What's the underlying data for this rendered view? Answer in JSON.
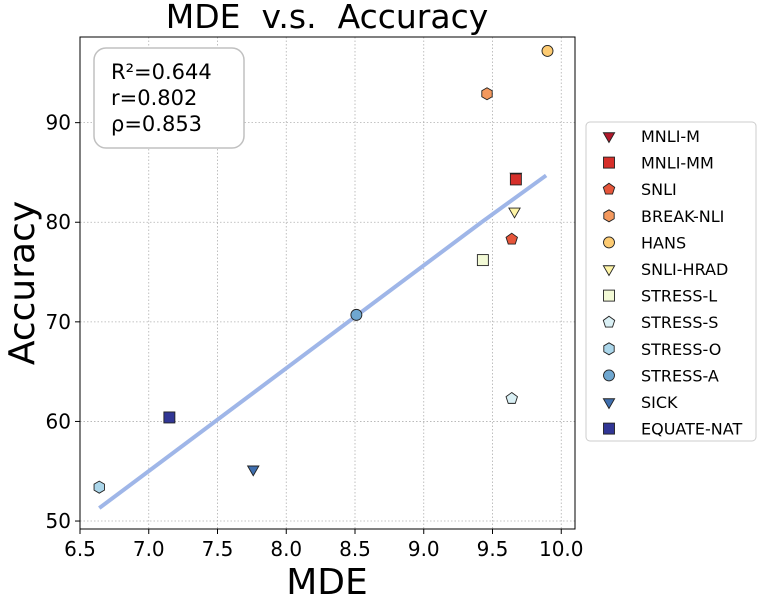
{
  "chart_data": {
    "type": "scatter",
    "title": "MDE  v.s.  Accuracy",
    "xlabel": "MDE",
    "ylabel": "Accuracy",
    "xlim": [
      6.5,
      10.1
    ],
    "ylim": [
      49.2,
      98.6
    ],
    "xticks": [
      6.5,
      7.0,
      7.5,
      8.0,
      8.5,
      9.0,
      9.5,
      10.0
    ],
    "yticks": [
      50,
      60,
      70,
      80,
      90
    ],
    "grid": true,
    "legend_position": "right, outside plot",
    "stats": [
      "R²=0.644",
      "r=0.802",
      "ρ=0.853"
    ],
    "series": [
      {
        "name": "MNLI-M",
        "marker": "triangle-down",
        "color": "#b2182b",
        "points": [
          [
            9.67,
            84.6
          ]
        ]
      },
      {
        "name": "MNLI-MM",
        "marker": "square",
        "color": "#d62f2a",
        "points": [
          [
            9.67,
            84.3
          ]
        ]
      },
      {
        "name": "SNLI",
        "marker": "pentagon",
        "color": "#e6553a",
        "points": [
          [
            9.64,
            78.3
          ]
        ]
      },
      {
        "name": "BREAK-NLI",
        "marker": "hexagon",
        "color": "#f4995e",
        "points": [
          [
            9.46,
            92.9
          ]
        ]
      },
      {
        "name": "HANS",
        "marker": "circle",
        "color": "#fdcb72",
        "points": [
          [
            9.9,
            97.2
          ]
        ]
      },
      {
        "name": "SNLI-HRAD",
        "marker": "triangle-down",
        "color": "#fef4a6",
        "points": [
          [
            9.66,
            81.1
          ]
        ]
      },
      {
        "name": "STRESS-L",
        "marker": "square",
        "color": "#f3fad6",
        "points": [
          [
            9.43,
            76.2
          ]
        ]
      },
      {
        "name": "STRESS-S",
        "marker": "pentagon",
        "color": "#daf0f5",
        "points": [
          [
            9.64,
            62.3
          ]
        ]
      },
      {
        "name": "STRESS-O",
        "marker": "hexagon",
        "color": "#abd6ea",
        "points": [
          [
            6.64,
            53.4
          ]
        ]
      },
      {
        "name": "STRESS-A",
        "marker": "circle",
        "color": "#6fa7d0",
        "points": [
          [
            8.51,
            70.7
          ]
        ]
      },
      {
        "name": "SICK",
        "marker": "triangle-down",
        "color": "#3f6faf",
        "points": [
          [
            7.76,
            55.2
          ]
        ]
      },
      {
        "name": "EQUATE-NAT",
        "marker": "square",
        "color": "#313695",
        "points": [
          [
            7.15,
            60.4
          ]
        ]
      }
    ],
    "fit_line": {
      "color": "#9fb6e8",
      "segments": [
        {
          "x": [
            6.64,
            9.42
          ],
          "y": [
            51.3,
            80.0
          ],
          "style": "thick"
        },
        {
          "x": [
            9.42,
            9.89
          ],
          "y": [
            80.0,
            84.7
          ],
          "style": "thick"
        }
      ]
    }
  }
}
